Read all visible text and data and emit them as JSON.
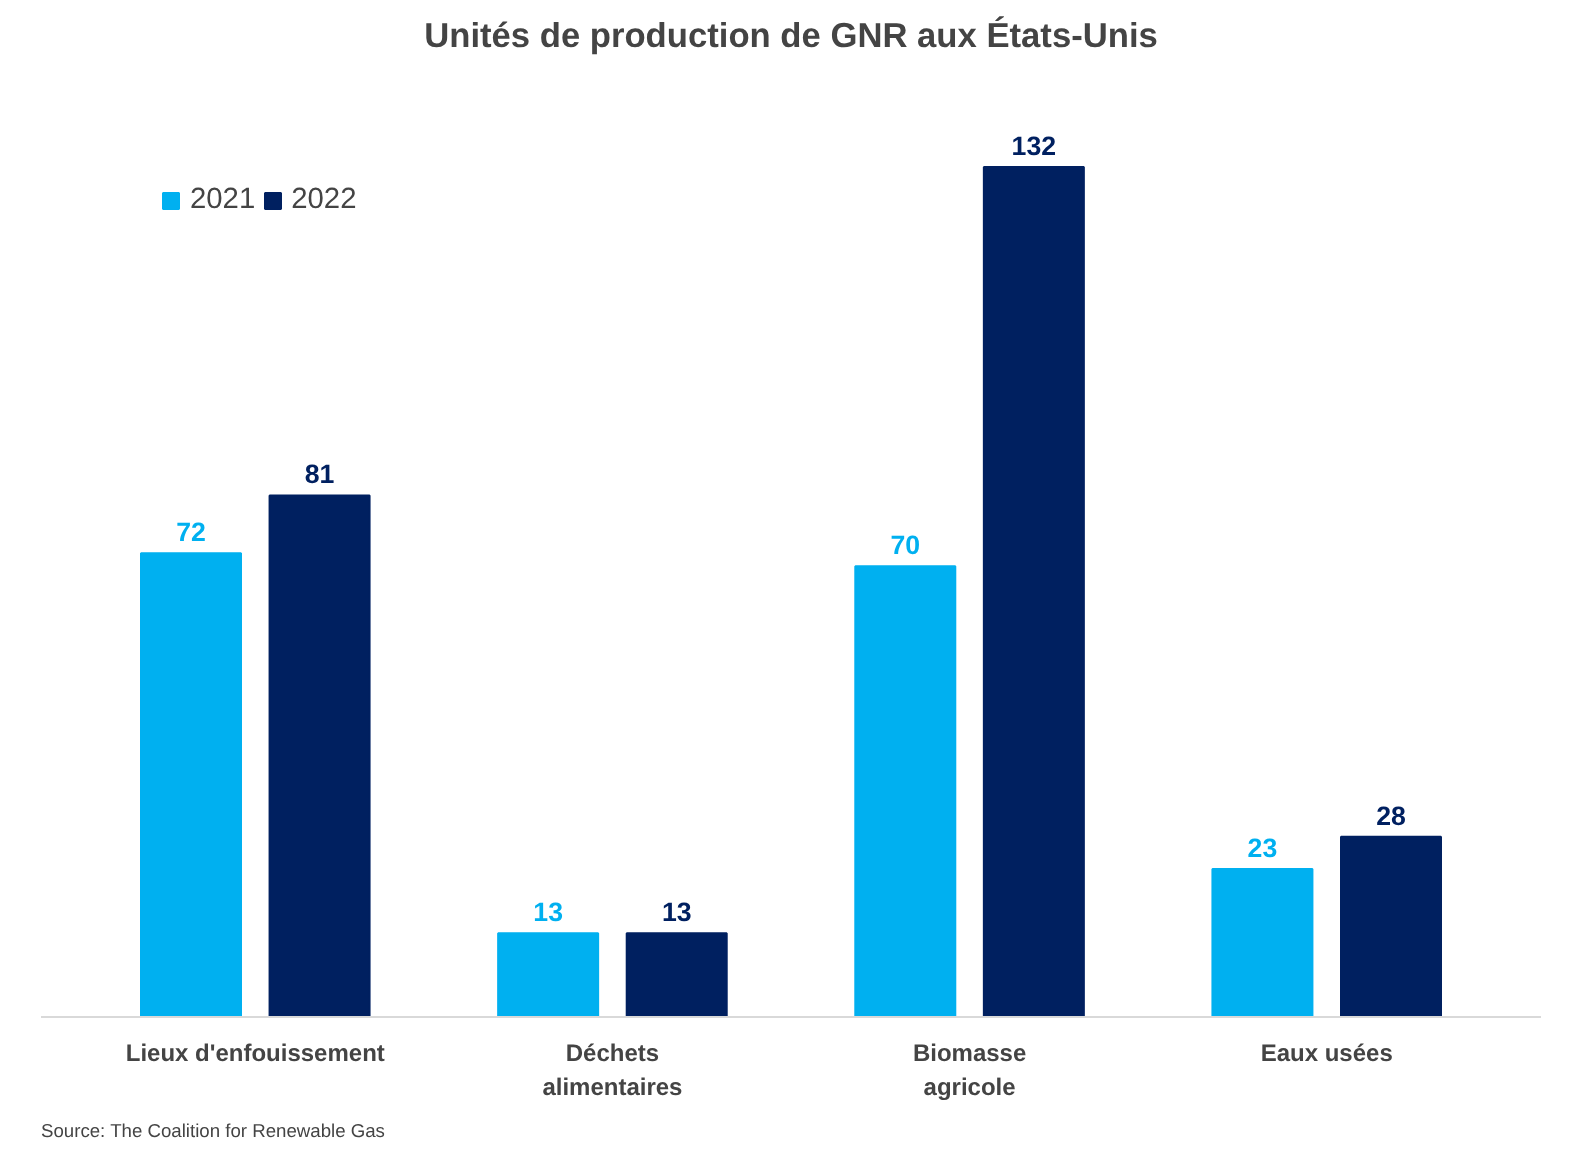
{
  "chart_data": {
    "type": "bar",
    "title": "Unités de production de GNR aux États-Unis",
    "categories": [
      "Lieux d'enfouissement",
      "Déchets\nalimentaires",
      "Biomasse\nagricole",
      "Eaux usées"
    ],
    "series": [
      {
        "name": "2021",
        "color": "#00b0f0",
        "values": [
          72,
          13,
          70,
          23
        ]
      },
      {
        "name": "2022",
        "color": "#002060",
        "values": [
          81,
          13,
          132,
          28
        ]
      }
    ],
    "tick_labels": "x",
    "data_labels": true,
    "legend": "top left",
    "grid": false,
    "annotations": [
      "Source: The Coalition for Renewable Gas"
    ]
  }
}
